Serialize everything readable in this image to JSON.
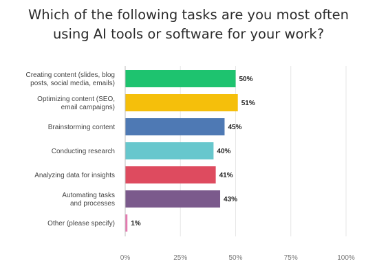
{
  "chart_data": {
    "type": "bar",
    "orientation": "horizontal",
    "title": "Which of the following tasks are you most often using AI tools or software for your work?",
    "title_lines": [
      "Which of the following tasks are you most often",
      "using AI tools or software for your work?"
    ],
    "categories": [
      "Creating content (slides, blog posts, social media, emails)",
      "Optimizing content (SEO, email campaigns)",
      "Brainstorming content",
      "Conducting research",
      "Analyzing data for insights",
      "Automating tasks and processes",
      "Other (please specify)"
    ],
    "category_label_lines": [
      [
        "Creating content (slides, blog",
        "posts, social media, emails)"
      ],
      [
        "Optimizing content (SEO,",
        "email campaigns)"
      ],
      [
        "Brainstorming content"
      ],
      [
        "Conducting research"
      ],
      [
        "Analyzing data for insights"
      ],
      [
        "Automating tasks",
        "and processes"
      ],
      [
        "Other (please specify)"
      ]
    ],
    "values": [
      50,
      51,
      45,
      40,
      41,
      43,
      1
    ],
    "value_labels": [
      "50%",
      "51%",
      "45%",
      "40%",
      "41%",
      "43%",
      "1%"
    ],
    "colors": [
      "#1ec36f",
      "#f5bf0b",
      "#4e79b4",
      "#67c7cd",
      "#de4b5f",
      "#7b5a8c",
      "#e678b0"
    ],
    "xlim": [
      0,
      100
    ],
    "xticks": [
      0,
      25,
      50,
      75,
      100
    ],
    "xtick_labels": [
      "0%",
      "25%",
      "50%",
      "75%",
      "100%"
    ],
    "grid": true,
    "legend": "none"
  }
}
